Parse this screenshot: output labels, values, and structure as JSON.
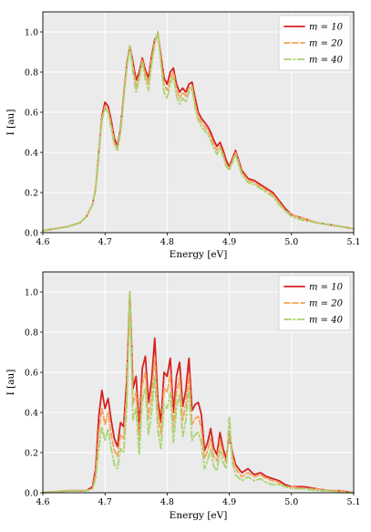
{
  "chart_data": [
    {
      "type": "line",
      "title": "",
      "xlabel": "Energy [eV]",
      "ylabel": "I [au]",
      "xlim": [
        4.6,
        5.1
      ],
      "ylim": [
        0.0,
        1.1
      ],
      "x_ticks": [
        4.6,
        4.7,
        4.8,
        4.9,
        5.0,
        5.1
      ],
      "x_tick_labels": [
        "4.6",
        "4.7",
        "4.8",
        "4.9",
        "5.0",
        "5.1"
      ],
      "y_ticks": [
        0.0,
        0.2,
        0.4,
        0.6,
        0.8,
        1.0
      ],
      "y_tick_labels": [
        "0.0",
        "0.2",
        "0.4",
        "0.6",
        "0.8",
        "1.0"
      ],
      "grid": true,
      "legend_position": "top-right",
      "series": [
        {
          "name": "m = 10",
          "color": "#d62020",
          "style": "solid",
          "x": [
            4.6,
            4.62,
            4.64,
            4.66,
            4.67,
            4.68,
            4.685,
            4.69,
            4.695,
            4.7,
            4.705,
            4.71,
            4.715,
            4.72,
            4.725,
            4.73,
            4.735,
            4.74,
            4.745,
            4.75,
            4.755,
            4.76,
            4.765,
            4.77,
            4.775,
            4.78,
            4.785,
            4.79,
            4.795,
            4.8,
            4.805,
            4.81,
            4.815,
            4.82,
            4.825,
            4.83,
            4.835,
            4.84,
            4.845,
            4.85,
            4.855,
            4.86,
            4.865,
            4.87,
            4.875,
            4.88,
            4.885,
            4.89,
            4.895,
            4.9,
            4.905,
            4.91,
            4.915,
            4.92,
            4.93,
            4.94,
            4.95,
            4.96,
            4.97,
            4.98,
            4.99,
            5.0,
            5.02,
            5.04,
            5.06,
            5.08,
            5.1
          ],
          "y": [
            0.01,
            0.02,
            0.03,
            0.05,
            0.08,
            0.14,
            0.22,
            0.4,
            0.58,
            0.65,
            0.63,
            0.56,
            0.47,
            0.43,
            0.52,
            0.68,
            0.84,
            0.93,
            0.85,
            0.76,
            0.8,
            0.87,
            0.81,
            0.77,
            0.88,
            0.96,
            0.99,
            0.88,
            0.77,
            0.74,
            0.8,
            0.82,
            0.74,
            0.7,
            0.72,
            0.7,
            0.74,
            0.75,
            0.67,
            0.6,
            0.57,
            0.55,
            0.53,
            0.5,
            0.46,
            0.43,
            0.45,
            0.41,
            0.36,
            0.33,
            0.37,
            0.41,
            0.36,
            0.31,
            0.27,
            0.26,
            0.24,
            0.22,
            0.2,
            0.16,
            0.12,
            0.09,
            0.07,
            0.05,
            0.04,
            0.03,
            0.02
          ]
        },
        {
          "name": "m = 20",
          "color": "#f5a35a",
          "style": "dashed",
          "x": [
            4.6,
            4.62,
            4.64,
            4.66,
            4.67,
            4.68,
            4.685,
            4.69,
            4.695,
            4.7,
            4.705,
            4.71,
            4.715,
            4.72,
            4.725,
            4.73,
            4.735,
            4.74,
            4.745,
            4.75,
            4.755,
            4.76,
            4.765,
            4.77,
            4.775,
            4.78,
            4.785,
            4.79,
            4.795,
            4.8,
            4.805,
            4.81,
            4.815,
            4.82,
            4.825,
            4.83,
            4.835,
            4.84,
            4.845,
            4.85,
            4.855,
            4.86,
            4.865,
            4.87,
            4.875,
            4.88,
            4.885,
            4.89,
            4.895,
            4.9,
            4.905,
            4.91,
            4.915,
            4.92,
            4.93,
            4.94,
            4.95,
            4.96,
            4.97,
            4.98,
            4.99,
            5.0,
            5.02,
            5.04,
            5.06,
            5.08,
            5.1
          ],
          "y": [
            0.01,
            0.02,
            0.03,
            0.05,
            0.08,
            0.14,
            0.22,
            0.4,
            0.57,
            0.63,
            0.61,
            0.54,
            0.45,
            0.42,
            0.51,
            0.67,
            0.83,
            0.93,
            0.83,
            0.73,
            0.78,
            0.86,
            0.79,
            0.74,
            0.86,
            0.95,
            1.0,
            0.86,
            0.74,
            0.71,
            0.77,
            0.8,
            0.71,
            0.67,
            0.7,
            0.68,
            0.72,
            0.73,
            0.64,
            0.58,
            0.55,
            0.53,
            0.51,
            0.48,
            0.44,
            0.41,
            0.43,
            0.39,
            0.34,
            0.32,
            0.36,
            0.4,
            0.35,
            0.3,
            0.26,
            0.25,
            0.23,
            0.21,
            0.19,
            0.15,
            0.11,
            0.09,
            0.07,
            0.05,
            0.04,
            0.03,
            0.02
          ]
        },
        {
          "name": "m = 40",
          "color": "#a8d46f",
          "style": "dash-dot",
          "x": [
            4.6,
            4.62,
            4.64,
            4.66,
            4.67,
            4.68,
            4.685,
            4.69,
            4.695,
            4.7,
            4.705,
            4.71,
            4.715,
            4.72,
            4.725,
            4.73,
            4.735,
            4.74,
            4.745,
            4.75,
            4.755,
            4.76,
            4.765,
            4.77,
            4.775,
            4.78,
            4.785,
            4.79,
            4.795,
            4.8,
            4.805,
            4.81,
            4.815,
            4.82,
            4.825,
            4.83,
            4.835,
            4.84,
            4.845,
            4.85,
            4.855,
            4.86,
            4.865,
            4.87,
            4.875,
            4.88,
            4.885,
            4.89,
            4.895,
            4.9,
            4.905,
            4.91,
            4.915,
            4.92,
            4.93,
            4.94,
            4.95,
            4.96,
            4.97,
            4.98,
            4.99,
            5.0,
            5.02,
            5.04,
            5.06,
            5.08,
            5.1
          ],
          "y": [
            0.01,
            0.02,
            0.03,
            0.05,
            0.08,
            0.14,
            0.22,
            0.39,
            0.56,
            0.62,
            0.6,
            0.52,
            0.44,
            0.41,
            0.5,
            0.66,
            0.82,
            0.93,
            0.8,
            0.7,
            0.76,
            0.85,
            0.76,
            0.71,
            0.84,
            0.94,
            1.0,
            0.84,
            0.7,
            0.67,
            0.74,
            0.78,
            0.68,
            0.64,
            0.67,
            0.65,
            0.7,
            0.72,
            0.62,
            0.56,
            0.53,
            0.51,
            0.49,
            0.46,
            0.42,
            0.39,
            0.42,
            0.38,
            0.33,
            0.31,
            0.35,
            0.39,
            0.34,
            0.29,
            0.25,
            0.24,
            0.22,
            0.2,
            0.18,
            0.14,
            0.11,
            0.08,
            0.06,
            0.05,
            0.04,
            0.03,
            0.02
          ]
        }
      ]
    },
    {
      "type": "line",
      "title": "",
      "xlabel": "Energy [eV]",
      "ylabel": "I [au]",
      "xlim": [
        4.6,
        5.1
      ],
      "ylim": [
        0.0,
        1.1
      ],
      "x_ticks": [
        4.6,
        4.7,
        4.8,
        4.9,
        5.0,
        5.1
      ],
      "x_tick_labels": [
        "4.6",
        "4.7",
        "4.8",
        "4.9",
        "5.0",
        "5.1"
      ],
      "y_ticks": [
        0.0,
        0.2,
        0.4,
        0.6,
        0.8,
        1.0
      ],
      "y_tick_labels": [
        "0.0",
        "0.2",
        "0.4",
        "0.6",
        "0.8",
        "1.0"
      ],
      "grid": true,
      "legend_position": "top-right",
      "series": [
        {
          "name": "m = 10",
          "color": "#d62020",
          "style": "solid",
          "x": [
            4.6,
            4.64,
            4.67,
            4.68,
            4.685,
            4.69,
            4.695,
            4.7,
            4.705,
            4.71,
            4.715,
            4.72,
            4.725,
            4.73,
            4.735,
            4.74,
            4.745,
            4.75,
            4.755,
            4.76,
            4.765,
            4.77,
            4.775,
            4.78,
            4.785,
            4.79,
            4.795,
            4.8,
            4.805,
            4.81,
            4.815,
            4.82,
            4.825,
            4.83,
            4.835,
            4.84,
            4.845,
            4.85,
            4.855,
            4.86,
            4.865,
            4.87,
            4.875,
            4.88,
            4.885,
            4.89,
            4.895,
            4.9,
            4.905,
            4.91,
            4.92,
            4.93,
            4.94,
            4.95,
            4.96,
            4.97,
            4.98,
            4.99,
            5.0,
            5.02,
            5.04,
            5.06,
            5.08,
            5.1
          ],
          "y": [
            0.0,
            0.01,
            0.01,
            0.03,
            0.12,
            0.38,
            0.51,
            0.42,
            0.47,
            0.36,
            0.27,
            0.23,
            0.35,
            0.33,
            0.56,
            1.0,
            0.52,
            0.58,
            0.32,
            0.62,
            0.68,
            0.45,
            0.56,
            0.77,
            0.46,
            0.35,
            0.6,
            0.58,
            0.67,
            0.4,
            0.58,
            0.65,
            0.43,
            0.51,
            0.67,
            0.41,
            0.44,
            0.45,
            0.39,
            0.21,
            0.25,
            0.32,
            0.22,
            0.19,
            0.3,
            0.22,
            0.17,
            0.29,
            0.2,
            0.14,
            0.1,
            0.12,
            0.09,
            0.1,
            0.08,
            0.07,
            0.06,
            0.04,
            0.03,
            0.03,
            0.02,
            0.01,
            0.01,
            0.0
          ]
        },
        {
          "name": "m = 20",
          "color": "#f5a35a",
          "style": "dashed",
          "x": [
            4.6,
            4.64,
            4.67,
            4.68,
            4.685,
            4.69,
            4.695,
            4.7,
            4.705,
            4.71,
            4.715,
            4.72,
            4.725,
            4.73,
            4.735,
            4.74,
            4.745,
            4.75,
            4.755,
            4.76,
            4.765,
            4.77,
            4.775,
            4.78,
            4.785,
            4.79,
            4.795,
            4.8,
            4.805,
            4.81,
            4.815,
            4.82,
            4.825,
            4.83,
            4.835,
            4.84,
            4.845,
            4.85,
            4.855,
            4.86,
            4.865,
            4.87,
            4.875,
            4.88,
            4.885,
            4.89,
            4.895,
            4.9,
            4.905,
            4.91,
            4.92,
            4.93,
            4.94,
            4.95,
            4.96,
            4.97,
            4.98,
            4.99,
            5.0,
            5.02,
            5.04,
            5.06,
            5.08,
            5.1
          ],
          "y": [
            0.0,
            0.01,
            0.01,
            0.02,
            0.09,
            0.3,
            0.42,
            0.34,
            0.4,
            0.29,
            0.21,
            0.18,
            0.29,
            0.27,
            0.49,
            1.0,
            0.44,
            0.5,
            0.26,
            0.54,
            0.6,
            0.37,
            0.48,
            0.68,
            0.39,
            0.29,
            0.52,
            0.5,
            0.59,
            0.33,
            0.5,
            0.57,
            0.36,
            0.44,
            0.59,
            0.34,
            0.37,
            0.38,
            0.32,
            0.17,
            0.21,
            0.27,
            0.18,
            0.16,
            0.26,
            0.19,
            0.15,
            0.31,
            0.18,
            0.12,
            0.08,
            0.1,
            0.08,
            0.09,
            0.07,
            0.06,
            0.05,
            0.03,
            0.03,
            0.02,
            0.02,
            0.01,
            0.01,
            0.0
          ]
        },
        {
          "name": "m = 40",
          "color": "#a8d46f",
          "style": "dash-dot",
          "x": [
            4.6,
            4.64,
            4.67,
            4.68,
            4.685,
            4.69,
            4.695,
            4.7,
            4.705,
            4.71,
            4.715,
            4.72,
            4.725,
            4.73,
            4.735,
            4.74,
            4.745,
            4.75,
            4.755,
            4.76,
            4.765,
            4.77,
            4.775,
            4.78,
            4.785,
            4.79,
            4.795,
            4.8,
            4.805,
            4.81,
            4.815,
            4.82,
            4.825,
            4.83,
            4.835,
            4.84,
            4.845,
            4.85,
            4.855,
            4.86,
            4.865,
            4.87,
            4.875,
            4.88,
            4.885,
            4.89,
            4.895,
            4.9,
            4.905,
            4.91,
            4.92,
            4.93,
            4.94,
            4.95,
            4.96,
            4.97,
            4.98,
            4.99,
            5.0,
            5.02,
            5.04,
            5.06,
            5.08,
            5.1
          ],
          "y": [
            0.0,
            0.01,
            0.01,
            0.02,
            0.07,
            0.22,
            0.33,
            0.26,
            0.32,
            0.22,
            0.14,
            0.12,
            0.22,
            0.2,
            0.42,
            1.0,
            0.36,
            0.42,
            0.19,
            0.46,
            0.52,
            0.29,
            0.4,
            0.58,
            0.31,
            0.22,
            0.44,
            0.42,
            0.5,
            0.25,
            0.42,
            0.49,
            0.28,
            0.36,
            0.52,
            0.26,
            0.29,
            0.3,
            0.25,
            0.12,
            0.16,
            0.22,
            0.13,
            0.11,
            0.21,
            0.15,
            0.12,
            0.38,
            0.15,
            0.09,
            0.06,
            0.08,
            0.06,
            0.07,
            0.05,
            0.04,
            0.04,
            0.03,
            0.02,
            0.02,
            0.01,
            0.01,
            0.0,
            0.0
          ]
        }
      ]
    }
  ]
}
